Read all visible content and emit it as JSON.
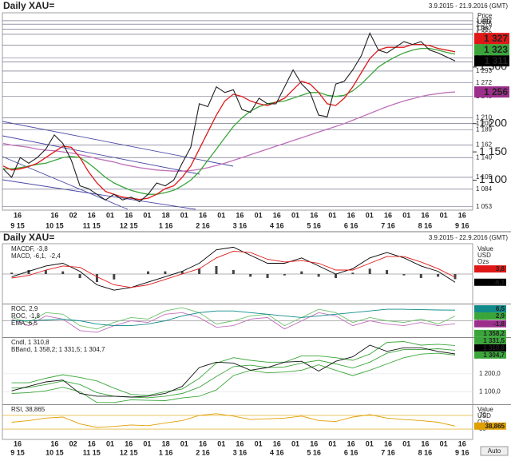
{
  "chart_data": [
    {
      "type": "line",
      "title": "Daily XAU=",
      "subtitle": "3.9.2015 - 21.9.2016 (GMT)",
      "axis_header": [
        "Price",
        "USD",
        "Ozs"
      ],
      "x_top": [
        "16",
        null,
        "16",
        "02",
        "16",
        "01",
        "16",
        "01",
        "18",
        "01",
        "16",
        "01",
        "16",
        "01",
        "16",
        "01",
        "16",
        "01",
        "16",
        "01",
        "16",
        "01",
        "16",
        "01",
        "16"
      ],
      "x_bottom": [
        "9 15",
        "10 15",
        "11 15",
        "12 15",
        "1 16",
        "2 16",
        "3 16",
        "4 16",
        "5 16",
        "6 16",
        "7 16",
        "8 16",
        "9 16"
      ],
      "ylim": [
        1047,
        1396
      ],
      "yticks": [
        {
          "value": 1300,
          "label": "1 300"
        },
        {
          "value": 1200,
          "label": "1 200"
        },
        {
          "value": 1150,
          "label": "1 150"
        },
        {
          "value": 1100,
          "label": "1 100"
        }
      ],
      "levels": [
        {
          "value": 1382,
          "label": "1 382"
        },
        {
          "value": 1376,
          "label": "1 376"
        },
        {
          "value": 1367,
          "label": "1 367"
        },
        {
          "value": 1358,
          "label": "1 358"
        },
        {
          "value": 1339,
          "label": "1 339"
        },
        {
          "value": 1316,
          "label": "1 316"
        },
        {
          "value": 1309,
          "label": "1 309"
        },
        {
          "value": 1293,
          "label": "1 293"
        },
        {
          "value": 1272,
          "label": "1 272"
        },
        {
          "value": 1248,
          "label": "1 248"
        },
        {
          "value": 1210,
          "label": "1 210"
        },
        {
          "value": 1200,
          "label": "1 200"
        },
        {
          "value": 1189,
          "label": "1 189"
        },
        {
          "value": 1162,
          "label": "1 162"
        },
        {
          "value": 1140,
          "label": "1 140"
        },
        {
          "value": 1105,
          "label": "1 105"
        },
        {
          "value": 1084,
          "label": "1 084"
        },
        {
          "value": 1053,
          "label": "1 053"
        }
      ],
      "price_boxes": [
        {
          "value": 1327,
          "label": "1 327",
          "color": "#e01818"
        },
        {
          "value": 1323,
          "label": "1 323",
          "color": "#3aa63a"
        },
        {
          "value": 1311,
          "label": "1 311",
          "color": "#000000"
        },
        {
          "value": 1256,
          "label": "1 256",
          "color": "#9c2e8c"
        }
      ],
      "series": [
        {
          "color": "#202020",
          "values": [
            1120,
            1105,
            1140,
            1130,
            1140,
            1155,
            1180,
            1165,
            1135,
            1090,
            1085,
            1075,
            1065,
            1075,
            1065,
            1070,
            1062,
            1075,
            1095,
            1090,
            1100,
            1130,
            1158,
            1235,
            1230,
            1265,
            1255,
            1260,
            1225,
            1220,
            1245,
            1235,
            1235,
            1265,
            1295,
            1270,
            1255,
            1215,
            1212,
            1270,
            1275,
            1295,
            1320,
            1360,
            1330,
            1325,
            1335,
            1345,
            1340,
            1345,
            1330,
            1325,
            1318,
            1311
          ]
        },
        {
          "color": "#e01818",
          "values": [
            1125,
            1118,
            1120,
            1124,
            1130,
            1140,
            1150,
            1160,
            1158,
            1140,
            1115,
            1095,
            1080,
            1075,
            1070,
            1068,
            1066,
            1068,
            1075,
            1085,
            1090,
            1105,
            1125,
            1155,
            1185,
            1215,
            1240,
            1252,
            1248,
            1240,
            1235,
            1232,
            1238,
            1245,
            1260,
            1275,
            1270,
            1255,
            1235,
            1232,
            1245,
            1265,
            1290,
            1315,
            1330,
            1335,
            1335,
            1335,
            1340,
            1340,
            1338,
            1333,
            1330,
            1327
          ]
        },
        {
          "color": "#3aa63a",
          "values": [
            1120,
            1120,
            1122,
            1125,
            1128,
            1130,
            1135,
            1140,
            1142,
            1140,
            1130,
            1118,
            1105,
            1095,
            1088,
            1082,
            1078,
            1075,
            1075,
            1078,
            1082,
            1090,
            1100,
            1115,
            1135,
            1155,
            1175,
            1195,
            1210,
            1222,
            1230,
            1235,
            1238,
            1240,
            1245,
            1250,
            1255,
            1255,
            1250,
            1248,
            1250,
            1258,
            1270,
            1285,
            1300,
            1310,
            1318,
            1325,
            1330,
            1333,
            1333,
            1330,
            1326,
            1323
          ]
        },
        {
          "color": "#c070b8",
          "values": [
            1165,
            1162,
            1160,
            1158,
            1155,
            1153,
            1152,
            1150,
            1148,
            1145,
            1142,
            1138,
            1135,
            1132,
            1128,
            1125,
            1122,
            1120,
            1118,
            1117,
            1116,
            1116,
            1117,
            1119,
            1122,
            1126,
            1130,
            1135,
            1140,
            1145,
            1150,
            1155,
            1160,
            1165,
            1170,
            1175,
            1180,
            1185,
            1190,
            1195,
            1200,
            1206,
            1212,
            1218,
            1224,
            1230,
            1235,
            1240,
            1244,
            1248,
            1251,
            1253,
            1255,
            1256
          ]
        }
      ]
    },
    {
      "type": "indicators",
      "title": "Daily XAU=",
      "subtitle": "3.9.2015 - 22.9.2016 (GMT)",
      "axis_header": [
        "Value",
        "USD",
        "Ozs"
      ],
      "button": "Auto",
      "panels": [
        {
          "legend": [
            [
              {
                "text": "MACDF, -3,8",
                "color": "#000000"
              }
            ],
            [
              {
                "text": "MACD, -6,1,",
                "color": "#000000"
              },
              {
                "text": "-2,4",
                "color": "#e01818"
              }
            ]
          ],
          "ylim": [
            -22,
            22
          ],
          "boxes": [
            {
              "value": 3.8,
              "label": "3,8",
              "color": "#e01818"
            },
            {
              "value": -6.1,
              "label": "-6,1",
              "color": "#000000"
            }
          ],
          "series": [
            {
              "kind": "bar",
              "color": "#444444",
              "values": [
                1,
                3,
                3,
                2,
                -3,
                -6,
                -4,
                0,
                2,
                2,
                2,
                4,
                6,
                3,
                -2,
                -3,
                -1,
                2,
                -2,
                -3,
                1,
                4,
                3,
                -1,
                -3,
                -2,
                -3.8
              ]
            },
            {
              "kind": "line",
              "color": "#000000",
              "values": [
                -2,
                2,
                6,
                8,
                2,
                -8,
                -12,
                -10,
                -6,
                -2,
                2,
                8,
                18,
                20,
                14,
                8,
                8,
                12,
                6,
                0,
                4,
                12,
                16,
                12,
                6,
                2,
                -6.1
              ]
            },
            {
              "kind": "line",
              "color": "#e01818",
              "values": [
                -3,
                -1,
                3,
                6,
                5,
                -2,
                -8,
                -10,
                -8,
                -4,
                0,
                4,
                12,
                17,
                16,
                11,
                9,
                10,
                8,
                3,
                3,
                8,
                13,
                13,
                9,
                4,
                -2.4
              ]
            }
          ]
        },
        {
          "legend": [
            [
              {
                "text": "ROC, 2,9",
                "color": "#3aa63a"
              }
            ],
            [
              {
                "text": "ROC, -1,8",
                "color": "#9c2e8c"
              }
            ],
            [
              {
                "text": "EMA, 6,5",
                "color": "#108a8a"
              }
            ]
          ],
          "ylim": [
            -10,
            10
          ],
          "boxes": [
            {
              "value": 6.5,
              "label": "6,5",
              "color": "#108a8a"
            },
            {
              "value": 2.9,
              "label": "2,9",
              "color": "#3aa63a"
            },
            {
              "value": -1.8,
              "label": "-1,8",
              "color": "#9c2e8c"
            }
          ],
          "series": [
            {
              "kind": "line",
              "color": "#6cc06c",
              "values": [
                2,
                -1,
                5,
                4,
                -3,
                -5,
                -1,
                2,
                1,
                6,
                8,
                5,
                -2,
                0,
                3,
                4,
                -3,
                2,
                7,
                5,
                -1,
                2,
                0,
                -1,
                1,
                -2,
                2.9
              ]
            },
            {
              "kind": "line",
              "color": "#c070b8",
              "values": [
                1,
                -3,
                3,
                1,
                -6,
                -7,
                -3,
                0,
                -1,
                4,
                5,
                2,
                -4,
                -3,
                1,
                2,
                -5,
                0,
                5,
                3,
                -3,
                0,
                -2,
                -3,
                -1,
                -3,
                -1.8
              ]
            },
            {
              "kind": "line",
              "color": "#108a8a",
              "values": [
                0,
                0,
                0.5,
                1,
                0,
                -2,
                -3,
                -3,
                -2,
                0,
                3,
                5,
                6,
                6,
                5,
                4,
                3,
                2,
                3,
                4,
                5,
                6,
                7,
                7,
                6.8,
                6.6,
                6.5
              ]
            }
          ]
        },
        {
          "legend": [
            [
              {
                "text": "Cndl, 1 310,8",
                "color": "#000000"
              }
            ],
            [
              {
                "text": "BBand, 1 358,2; 1 331,5; 1 304,7",
                "color": "#3aa63a"
              }
            ]
          ],
          "ylim": [
            1030,
            1400
          ],
          "yticks": [
            {
              "value": 1200,
              "label": "1 200,0"
            },
            {
              "value": 1100,
              "label": "1 100,0"
            }
          ],
          "boxes": [
            {
              "value": 1358.2,
              "label": "1 358,2",
              "color": "#3aa63a"
            },
            {
              "value": 1331.5,
              "label": "1 331,5",
              "color": "#3aa63a"
            },
            {
              "value": 1310.8,
              "label": "1 310,8",
              "color": "#000000"
            },
            {
              "value": 1304.7,
              "label": "1 304,7",
              "color": "#3aa63a"
            }
          ],
          "series": [
            {
              "kind": "line",
              "color": "#3aa63a",
              "values": [
                1150,
                1150,
                1175,
                1195,
                1180,
                1160,
                1120,
                1085,
                1080,
                1100,
                1115,
                1175,
                1260,
                1290,
                1275,
                1265,
                1265,
                1300,
                1300,
                1290,
                1275,
                1310,
                1375,
                1380,
                1360,
                1365,
                1358.2
              ]
            },
            {
              "kind": "line",
              "color": "#3aa63a",
              "values": [
                1120,
                1124,
                1140,
                1160,
                1140,
                1095,
                1075,
                1070,
                1066,
                1075,
                1090,
                1125,
                1185,
                1240,
                1248,
                1235,
                1238,
                1260,
                1275,
                1255,
                1232,
                1265,
                1315,
                1335,
                1335,
                1340,
                1331.5
              ]
            },
            {
              "kind": "line",
              "color": "#3aa63a",
              "values": [
                1090,
                1095,
                1105,
                1125,
                1100,
                1040,
                1040,
                1055,
                1052,
                1050,
                1065,
                1075,
                1110,
                1190,
                1220,
                1205,
                1210,
                1220,
                1250,
                1220,
                1190,
                1220,
                1255,
                1290,
                1310,
                1315,
                1304.7
              ]
            },
            {
              "kind": "line",
              "color": "#111111",
              "values": [
                1105,
                1130,
                1155,
                1165,
                1090,
                1075,
                1075,
                1070,
                1075,
                1090,
                1130,
                1235,
                1265,
                1260,
                1220,
                1235,
                1265,
                1270,
                1215,
                1270,
                1295,
                1360,
                1325,
                1345,
                1345,
                1325,
                1310.8
              ]
            }
          ]
        },
        {
          "legend": [
            [
              {
                "text": "RSI, 38,865",
                "color": "#e0a000"
              }
            ]
          ],
          "ylim": [
            0,
            100
          ],
          "yticks": [
            70,
            30
          ],
          "boxes": [
            {
              "value": 38.865,
              "label": "38,865",
              "color": "#e0a000"
            }
          ],
          "series": [
            {
              "kind": "line",
              "color": "#e0a000",
              "values": [
                50,
                55,
                62,
                65,
                45,
                35,
                38,
                42,
                40,
                48,
                55,
                70,
                75,
                68,
                58,
                60,
                62,
                68,
                55,
                52,
                65,
                72,
                62,
                58,
                55,
                50,
                38.865
              ]
            }
          ]
        }
      ]
    }
  ]
}
